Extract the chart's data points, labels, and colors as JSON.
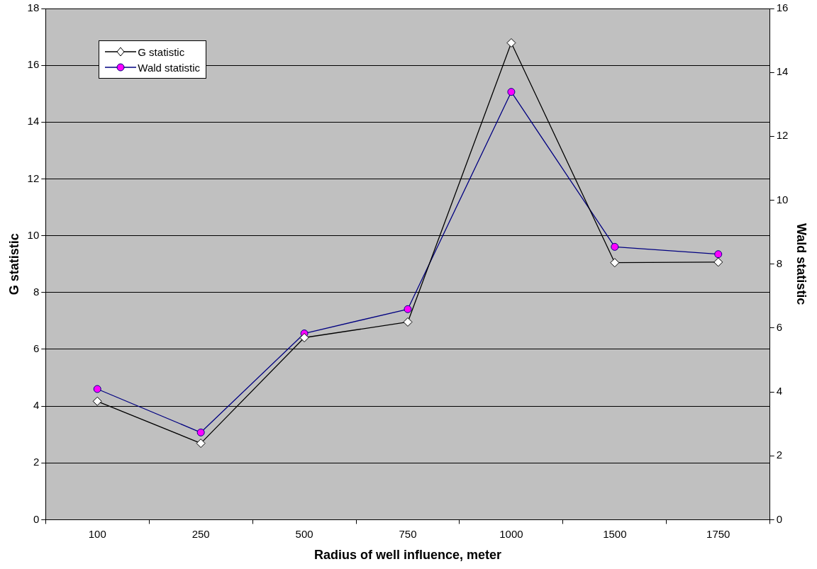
{
  "chart_data": {
    "type": "line",
    "xlabel": "Radius of well influence, meter",
    "ylabel": "G statistic",
    "y2label": "Wald statistic",
    "categories": [
      "100",
      "250",
      "500",
      "750",
      "1000",
      "1500",
      "1750"
    ],
    "series": [
      {
        "name": "G statistic",
        "color": "#000000",
        "marker": "diamond",
        "values": [
          4.17,
          2.69,
          6.41,
          6.96,
          16.79,
          9.05,
          9.07
        ]
      },
      {
        "name": "Wald statistic",
        "color": "#000080",
        "marker": "circle",
        "axis": "y2",
        "values": [
          4.09,
          2.73,
          5.83,
          6.59,
          13.39,
          8.54,
          8.31
        ]
      }
    ],
    "ylim": [
      0,
      18
    ],
    "yticks": [
      0,
      2,
      4,
      6,
      8,
      10,
      12,
      14,
      16,
      18
    ],
    "y2lim": [
      0,
      16
    ],
    "y2ticks": [
      0,
      2,
      4,
      6,
      8,
      10,
      12,
      14,
      16
    ],
    "grid": "y",
    "legend": "top left"
  }
}
